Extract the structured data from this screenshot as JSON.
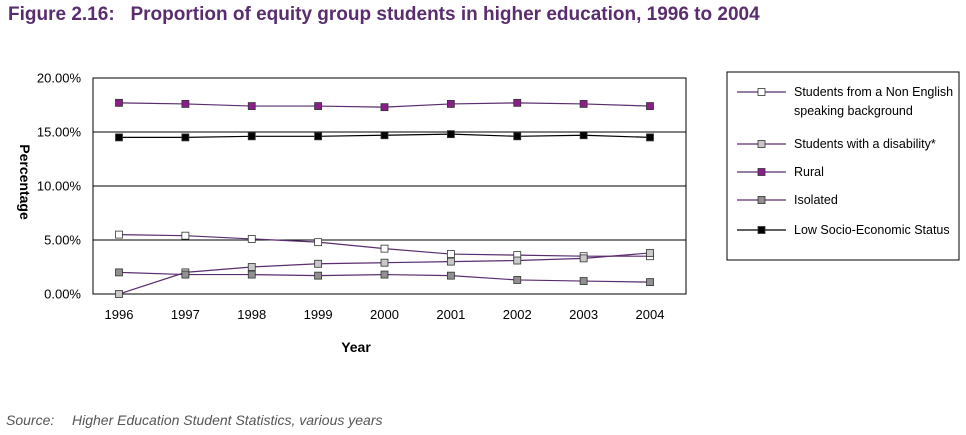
{
  "figure": {
    "title": "Figure 2.16:   Proportion of equity group students in higher education, 1996 to 2004",
    "source_label": "Source:",
    "source_text": "Higher Education Student Statistics, various years"
  },
  "chart_data": {
    "type": "line",
    "xlabel": "Year",
    "ylabel": "Percentage",
    "x": [
      "1996",
      "1997",
      "1998",
      "1999",
      "2000",
      "2001",
      "2002",
      "2003",
      "2004"
    ],
    "ylim": [
      0,
      20
    ],
    "yticks": [
      "0.00%",
      "5.00%",
      "10.00%",
      "15.00%",
      "20.00%"
    ],
    "grid": "horizontal",
    "legend_position": "right",
    "series": [
      {
        "name": "Students from a Non English speaking background",
        "legend_lines": [
          "Students from a Non English",
          "speaking background"
        ],
        "marker": "open-square",
        "marker_color": "#ffffff",
        "line_color": "#5a2d6e",
        "values": [
          5.5,
          5.4,
          5.1,
          4.8,
          4.2,
          3.7,
          3.6,
          3.5,
          3.5
        ]
      },
      {
        "name": "Students with a disability*",
        "legend_lines": [
          "Students with a disability*"
        ],
        "marker": "light-grey-square",
        "marker_color": "#c8c8c8",
        "line_color": "#5a2d6e",
        "values": [
          0.0,
          2.0,
          2.5,
          2.8,
          2.9,
          3.0,
          3.1,
          3.3,
          3.8
        ]
      },
      {
        "name": "Rural",
        "legend_lines": [
          "Rural"
        ],
        "marker": "purple-square",
        "marker_color": "#8a1f8a",
        "line_color": "#5a2d6e",
        "values": [
          17.7,
          17.6,
          17.4,
          17.4,
          17.3,
          17.6,
          17.7,
          17.6,
          17.4
        ]
      },
      {
        "name": "Isolated",
        "legend_lines": [
          "Isolated"
        ],
        "marker": "grey-square",
        "marker_color": "#909090",
        "line_color": "#5a2d6e",
        "values": [
          2.0,
          1.8,
          1.8,
          1.7,
          1.8,
          1.7,
          1.3,
          1.2,
          1.1
        ]
      },
      {
        "name": "Low Socio-Economic Status",
        "legend_lines": [
          "Low Socio-Economic Status"
        ],
        "marker": "black-square",
        "marker_color": "#000000",
        "line_color": "#000000",
        "values": [
          14.5,
          14.5,
          14.6,
          14.6,
          14.7,
          14.8,
          14.6,
          14.7,
          14.5
        ]
      }
    ]
  }
}
